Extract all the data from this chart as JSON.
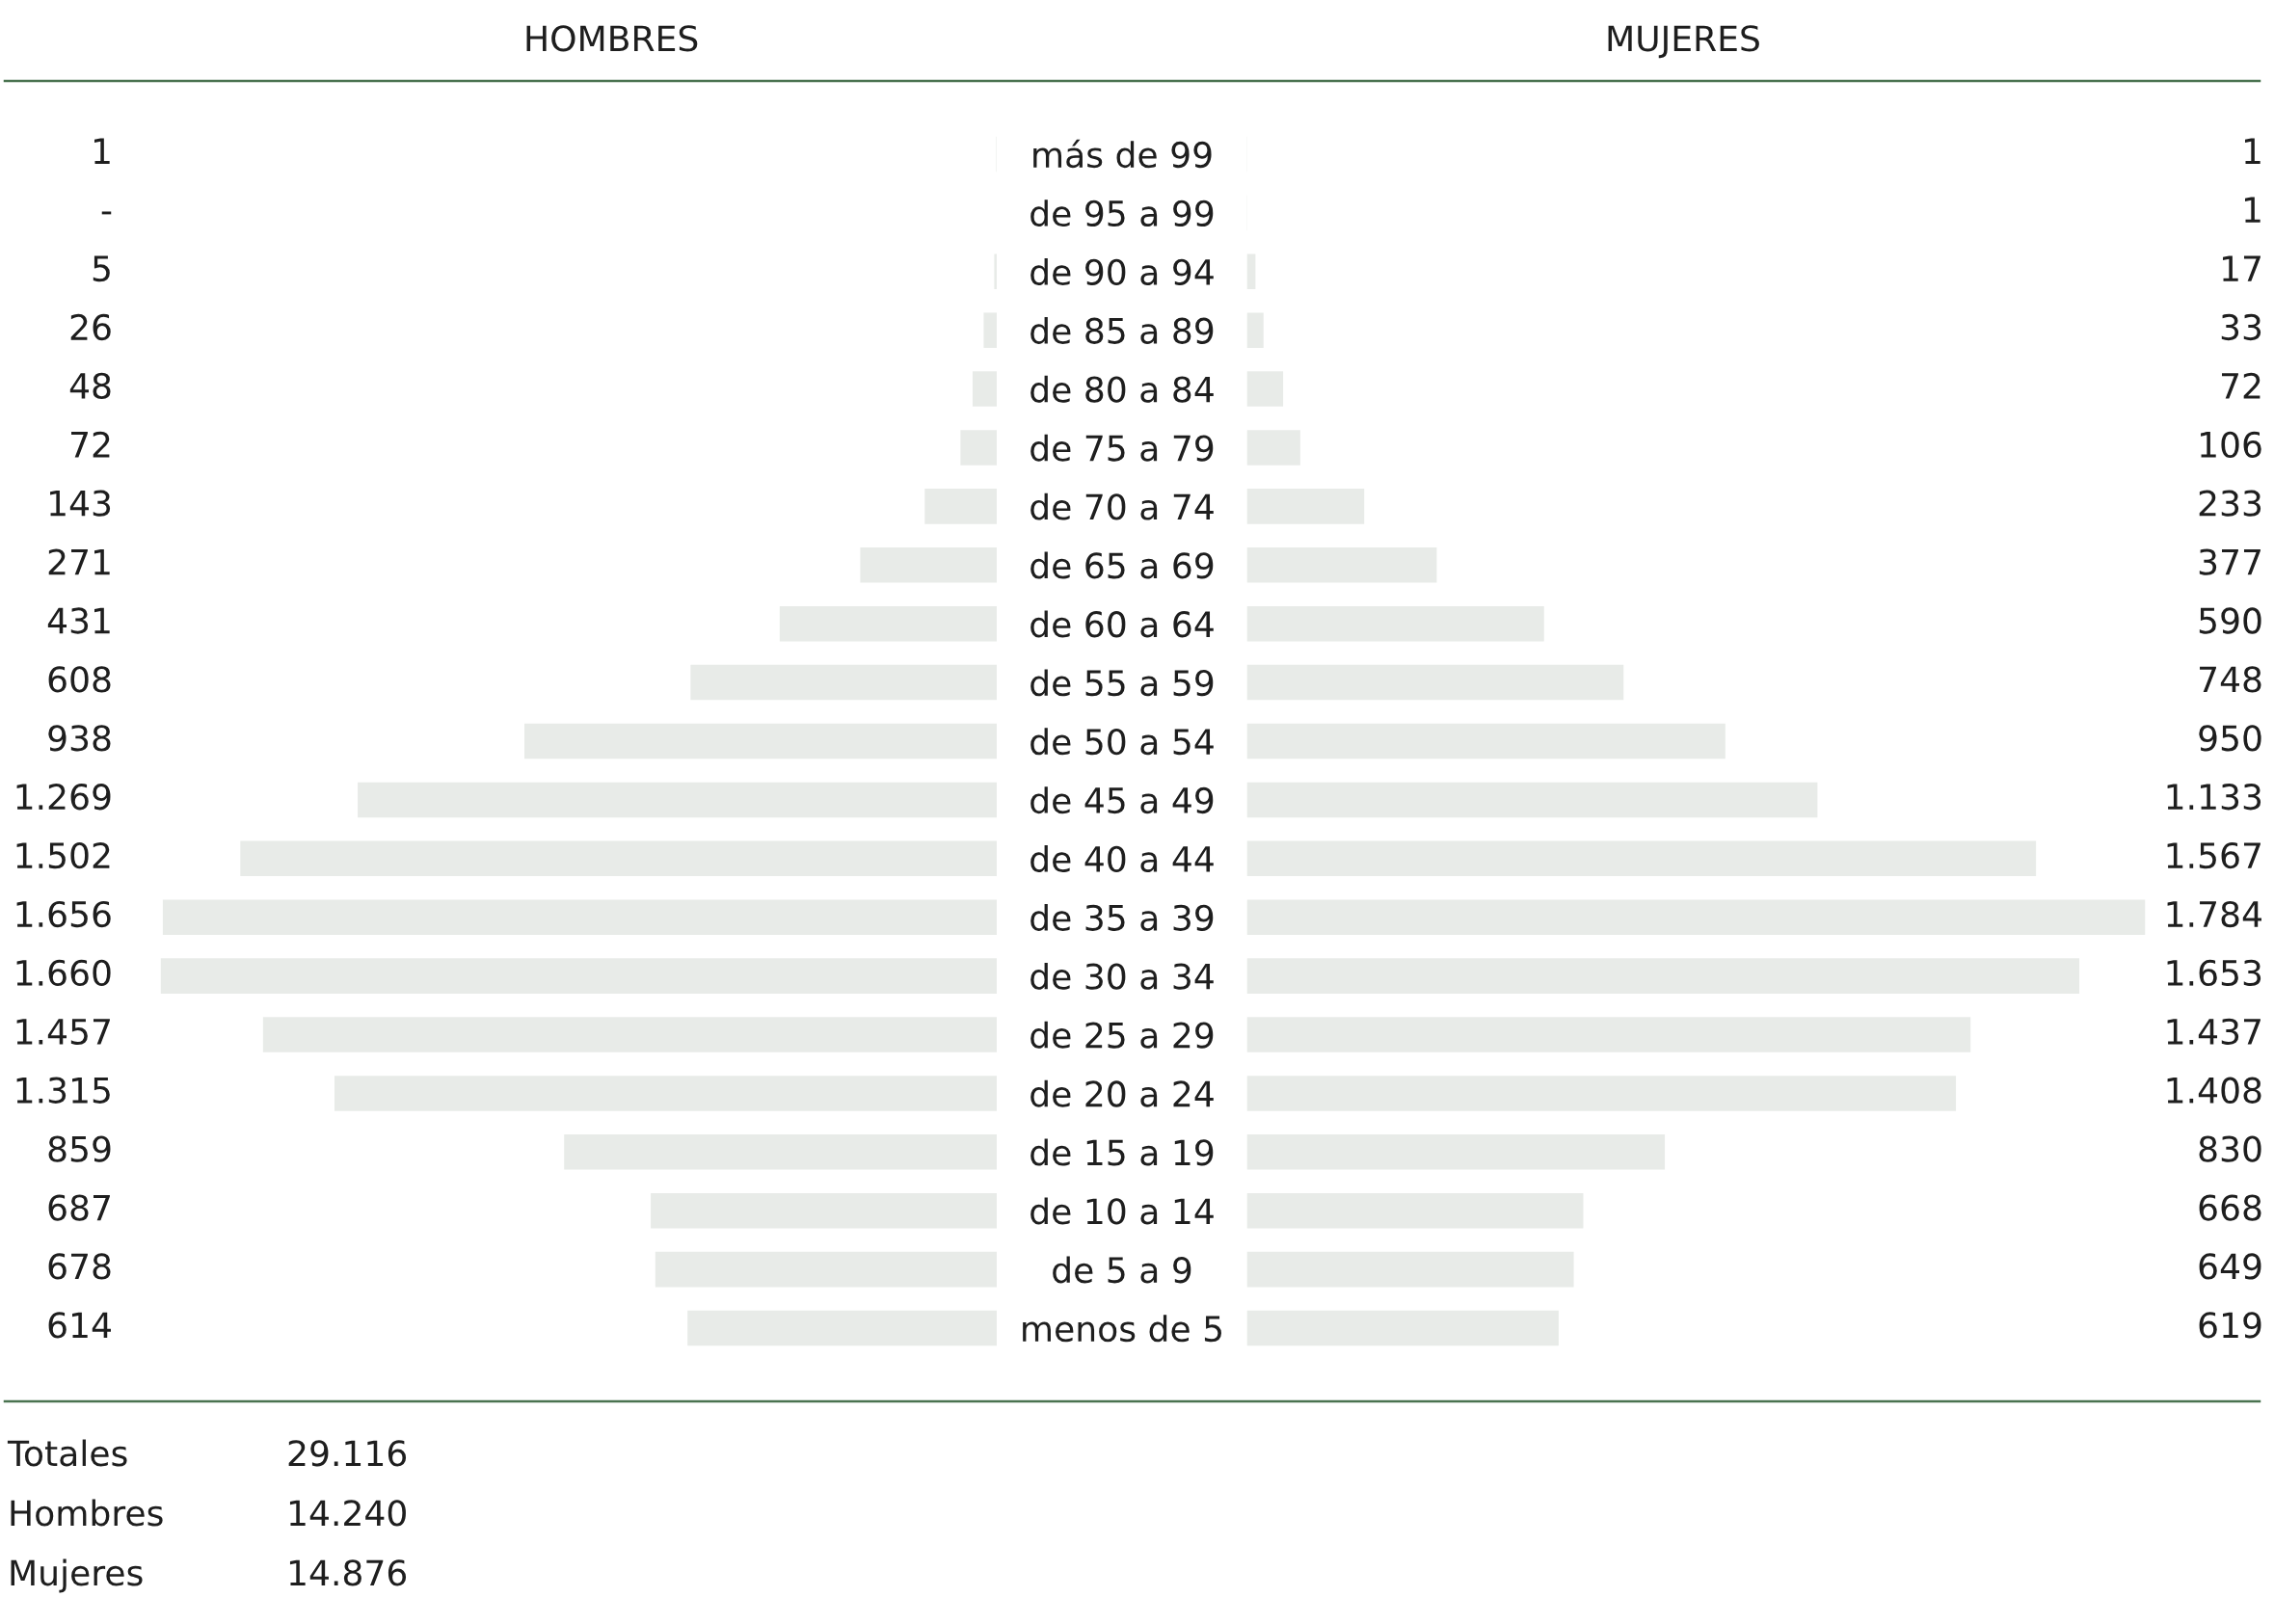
{
  "chart_data": [
    {
      "type": "bar",
      "orientation": "horizontal",
      "title": "HOMBRES",
      "categories": [
        "más de 99",
        "de 95 a 99",
        "de 90 a 94",
        "de 85 a 89",
        "de 80 a 84",
        "de 75 a 79",
        "de 70 a 74",
        "de 65 a 69",
        "de 60 a 64",
        "de 55 a 59",
        "de 50 a 54",
        "de 45 a 49",
        "de 40 a 44",
        "de 35 a 39",
        "de 30 a 34",
        "de 25 a 29",
        "de 20 a 24",
        "de 15 a 19",
        "de 10 a 14",
        "de 5 a 9",
        "menos de 5"
      ],
      "values": [
        1,
        0,
        5,
        26,
        48,
        72,
        143,
        271,
        431,
        608,
        938,
        1269,
        1502,
        1656,
        1660,
        1457,
        1315,
        859,
        687,
        678,
        614
      ],
      "value_labels": [
        "1",
        "-",
        "5",
        "26",
        "48",
        "72",
        "143",
        "271",
        "431",
        "608",
        "938",
        "1.269",
        "1.502",
        "1.656",
        "1.660",
        "1.457",
        "1.315",
        "859",
        "687",
        "678",
        "614"
      ],
      "color": "#e8ebe8",
      "tick_labels": "y"
    },
    {
      "type": "bar",
      "orientation": "horizontal",
      "title": "MUJERES",
      "categories": [
        null,
        null,
        null,
        null,
        null,
        null,
        null,
        null,
        null,
        null,
        null,
        null,
        null,
        null,
        null,
        null,
        null,
        null,
        null,
        null,
        null
      ],
      "values": [
        1,
        1,
        17,
        33,
        72,
        106,
        233,
        377,
        590,
        748,
        950,
        1133,
        1567,
        1784,
        1653,
        1437,
        1408,
        830,
        668,
        649,
        619
      ],
      "value_labels": [
        "1",
        "1",
        "17",
        "33",
        "72",
        "106",
        "233",
        "377",
        "590",
        "748",
        "950",
        "1.133",
        "1.567",
        "1.784",
        "1.653",
        "1.437",
        "1.408",
        "830",
        "668",
        "649",
        "619"
      ],
      "color": "#e8ebe8",
      "tick_labels": false
    },
    {
      "type": "other",
      "annotations": [
        "Totales",
        "29.116",
        "Hombres",
        "14.240",
        "Mujeres",
        "14.876"
      ]
    }
  ]
}
